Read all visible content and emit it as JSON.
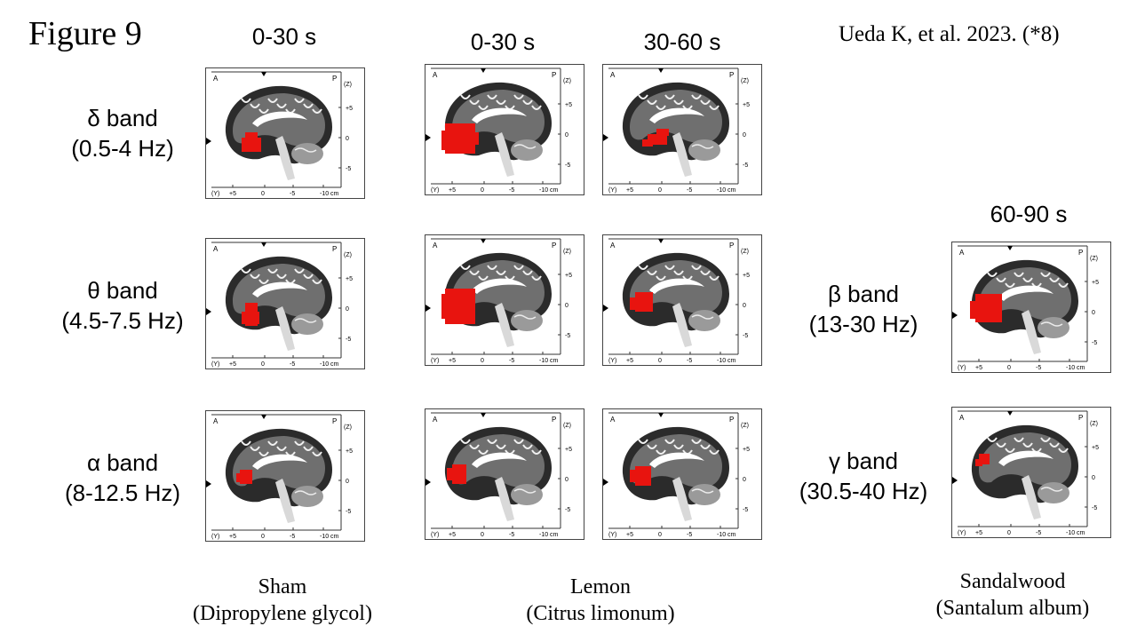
{
  "figure_title": "Figure 9",
  "citation": "Ueda K, et al. 2023. (*8)",
  "time_labels": {
    "sham": "0-30 s",
    "lemon_a": "0-30 s",
    "lemon_b": "30-60 s",
    "sandalwood": "60-90 s"
  },
  "bands_left": [
    {
      "name": "δ band",
      "range": "(0.5-4 Hz)"
    },
    {
      "name": "θ band",
      "range": "(4.5-7.5 Hz)"
    },
    {
      "name": "α band",
      "range": "(8-12.5 Hz)"
    }
  ],
  "bands_right": [
    {
      "name": "β band",
      "range": "(13-30 Hz)"
    },
    {
      "name": "γ band",
      "range": "(30.5-40 Hz)"
    }
  ],
  "groups": [
    {
      "name": "Sham",
      "detail": "(Dipropylene glycol)"
    },
    {
      "name": "Lemon",
      "detail": "(Citrus limonum)"
    },
    {
      "name": "Sandalwood",
      "detail": "(Santalum album)"
    }
  ],
  "panel_axis": {
    "corner_a": "A",
    "corner_p": "P",
    "z_label": "(Z)",
    "z_ticks": [
      "+5",
      "0",
      "-5"
    ],
    "y_label": "(Y)",
    "y_ticks": [
      "+5",
      "0",
      "-5",
      "-10 cm"
    ]
  },
  "colors": {
    "activation": "#e8140f",
    "brain_dark": "#2b2b2b",
    "brain_light": "#d9d9d9"
  }
}
